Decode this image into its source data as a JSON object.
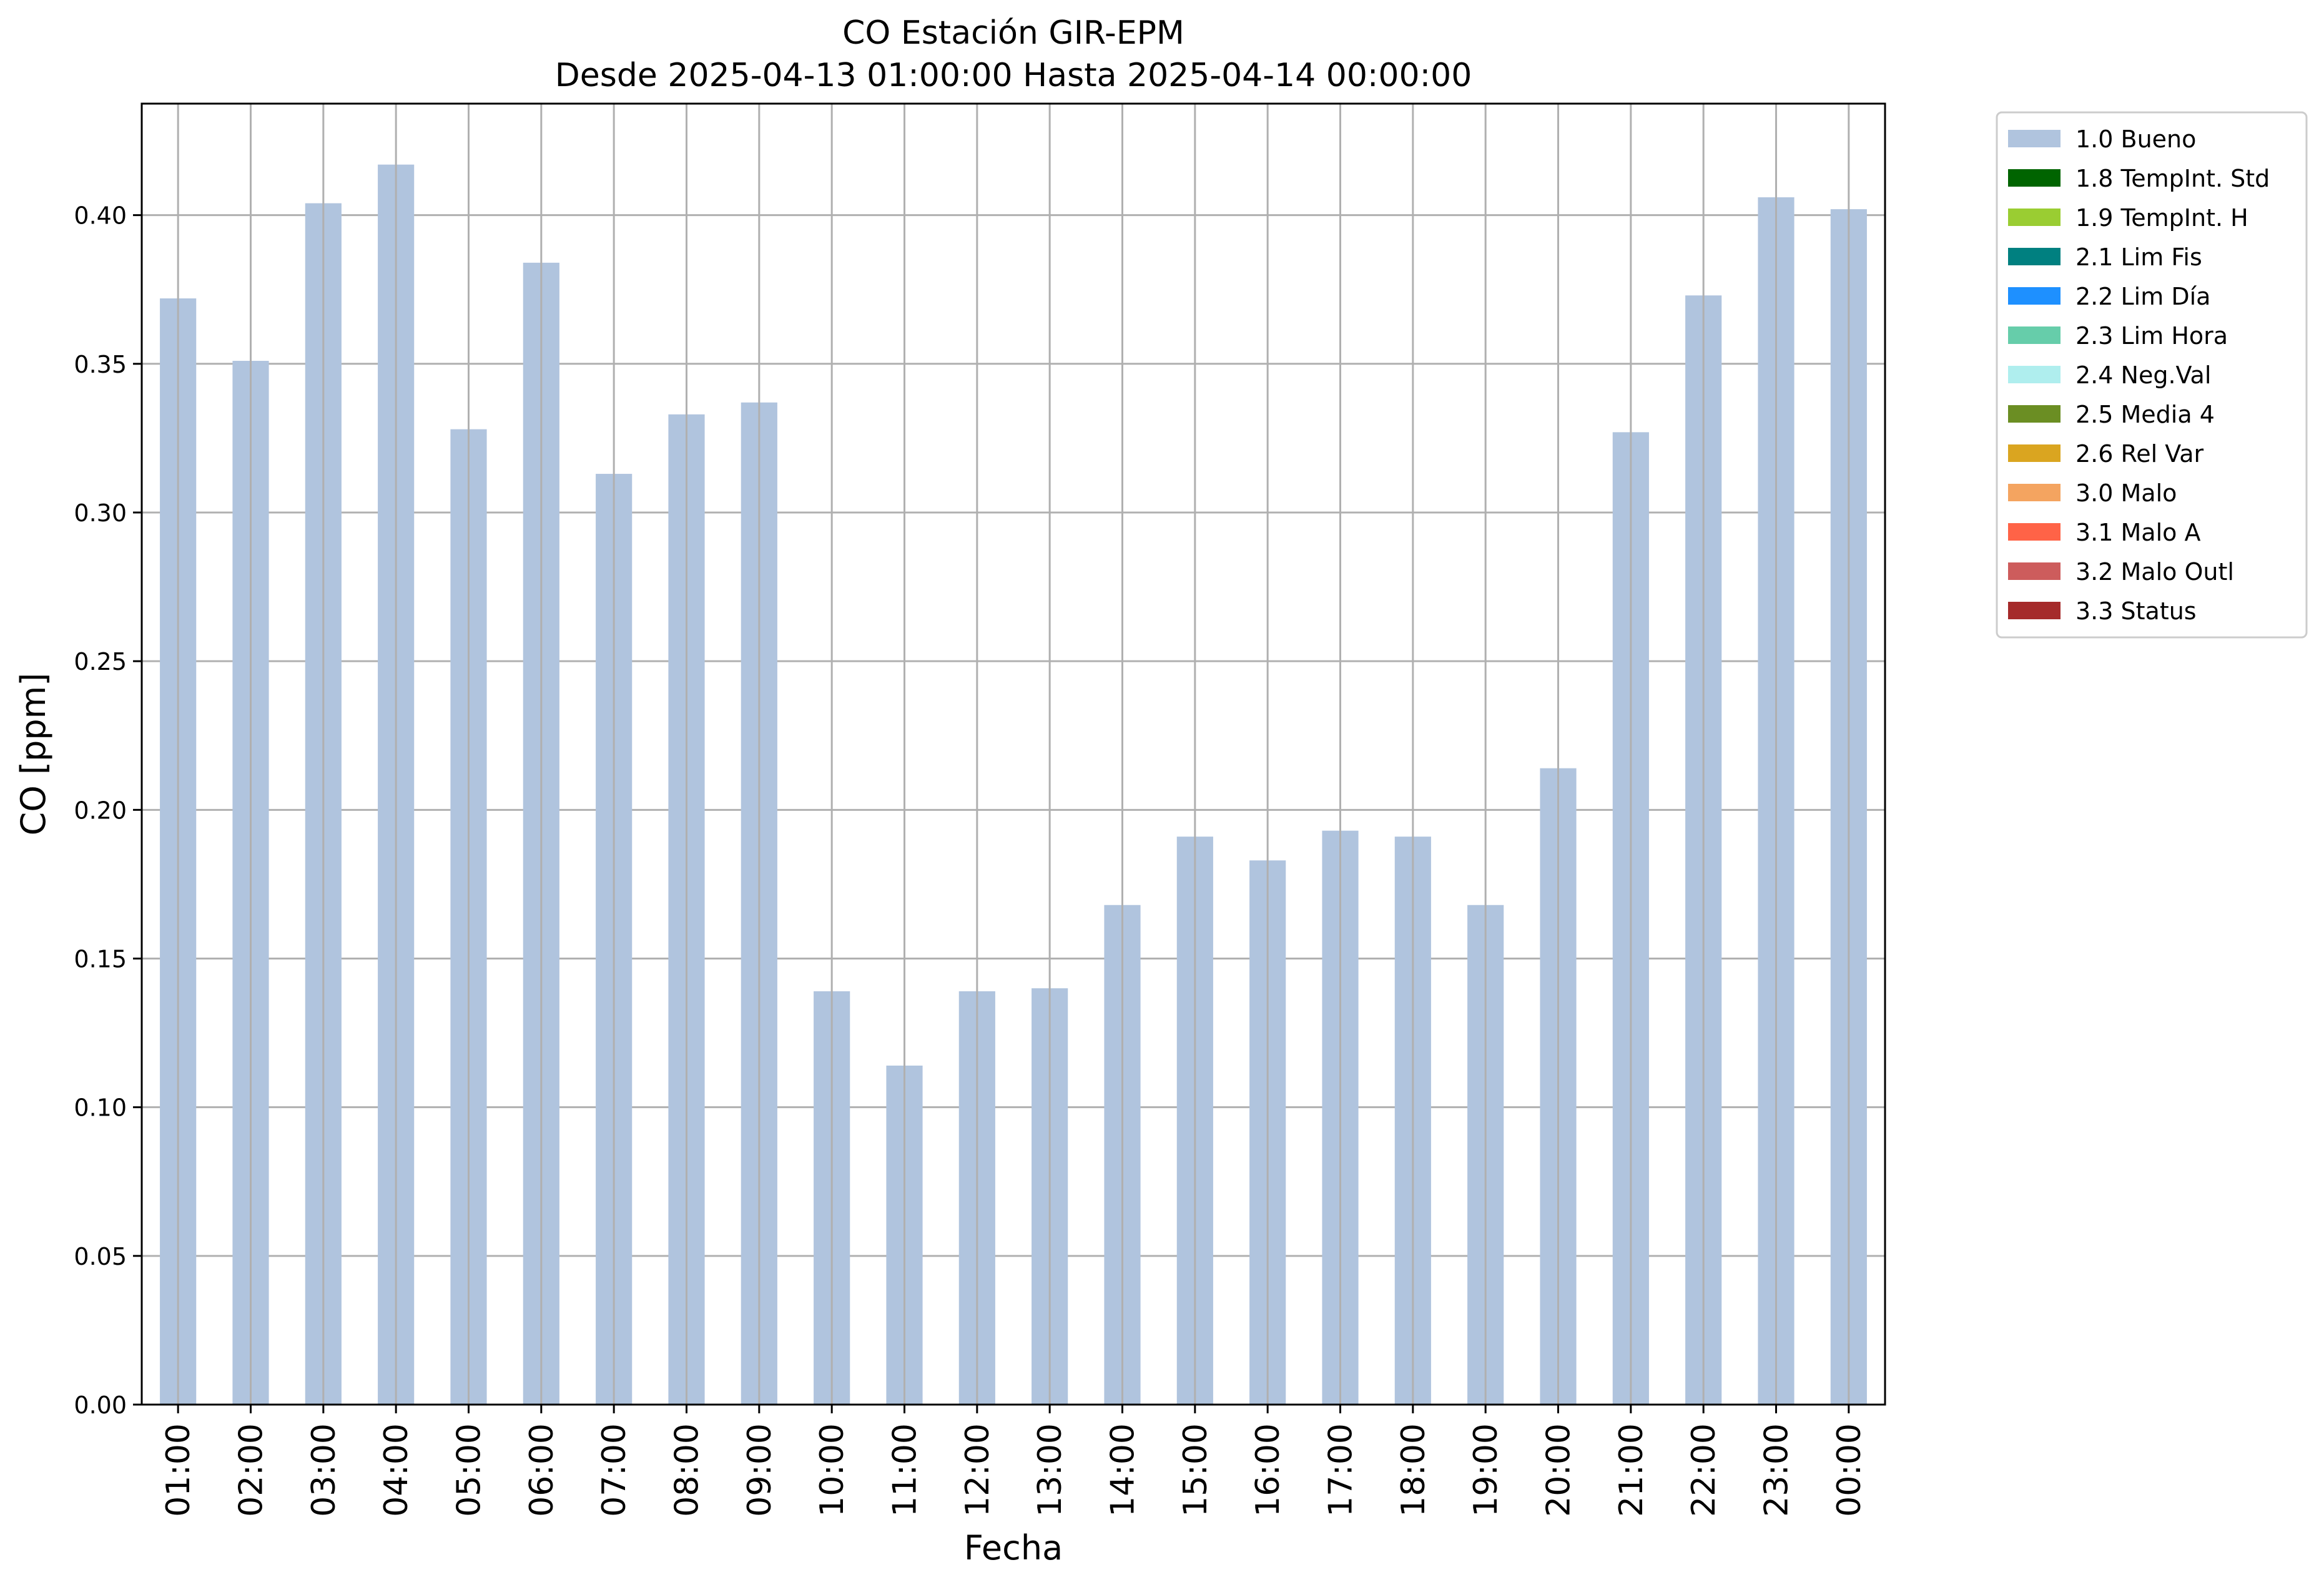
{
  "chart_data": {
    "type": "bar",
    "title": "CO Estación GIR-EPM",
    "subtitle": "Desde 2025-04-13 01:00:00 Hasta 2025-04-14 00:00:00",
    "xlabel": "Fecha",
    "ylabel": "CO [ppm]",
    "ylim": [
      0,
      0.4375
    ],
    "yticks": [
      0.0,
      0.05,
      0.1,
      0.15,
      0.2,
      0.25,
      0.3,
      0.35,
      0.4
    ],
    "ytick_labels": [
      "0.00",
      "0.05",
      "0.10",
      "0.15",
      "0.20",
      "0.25",
      "0.30",
      "0.35",
      "0.40"
    ],
    "grid": true,
    "legend_position": "outside-right-top",
    "categories": [
      "01:00",
      "02:00",
      "03:00",
      "04:00",
      "05:00",
      "06:00",
      "07:00",
      "08:00",
      "09:00",
      "10:00",
      "11:00",
      "12:00",
      "13:00",
      "14:00",
      "15:00",
      "16:00",
      "17:00",
      "18:00",
      "19:00",
      "20:00",
      "21:00",
      "22:00",
      "23:00",
      "00:00"
    ],
    "series": [
      {
        "name": "1.0 Bueno",
        "color": "#b0c4de",
        "values": [
          0.372,
          0.351,
          0.404,
          0.417,
          0.328,
          0.384,
          0.313,
          0.333,
          0.337,
          0.139,
          0.114,
          0.139,
          0.14,
          0.168,
          0.191,
          0.183,
          0.193,
          0.191,
          0.168,
          0.214,
          0.327,
          0.373,
          0.406,
          0.402
        ]
      }
    ],
    "legend": [
      {
        "label": "1.0 Bueno",
        "color": "#b0c4de"
      },
      {
        "label": "1.8 TempInt. Std",
        "color": "#006400"
      },
      {
        "label": "1.9 TempInt. H",
        "color": "#9acd32"
      },
      {
        "label": "2.1 Lim Fis",
        "color": "#008080"
      },
      {
        "label": "2.2 Lim Día",
        "color": "#1e90ff"
      },
      {
        "label": "2.3 Lim Hora",
        "color": "#66cdaa"
      },
      {
        "label": "2.4 Neg.Val",
        "color": "#afeeee"
      },
      {
        "label": "2.5 Media 4",
        "color": "#6b8e23"
      },
      {
        "label": "2.6 Rel Var",
        "color": "#daa520"
      },
      {
        "label": "3.0 Malo",
        "color": "#f4a460"
      },
      {
        "label": "3.1 Malo A",
        "color": "#ff6347"
      },
      {
        "label": "3.2 Malo Outl",
        "color": "#cd5c5c"
      },
      {
        "label": "3.3 Status",
        "color": "#a52a2a"
      }
    ]
  }
}
